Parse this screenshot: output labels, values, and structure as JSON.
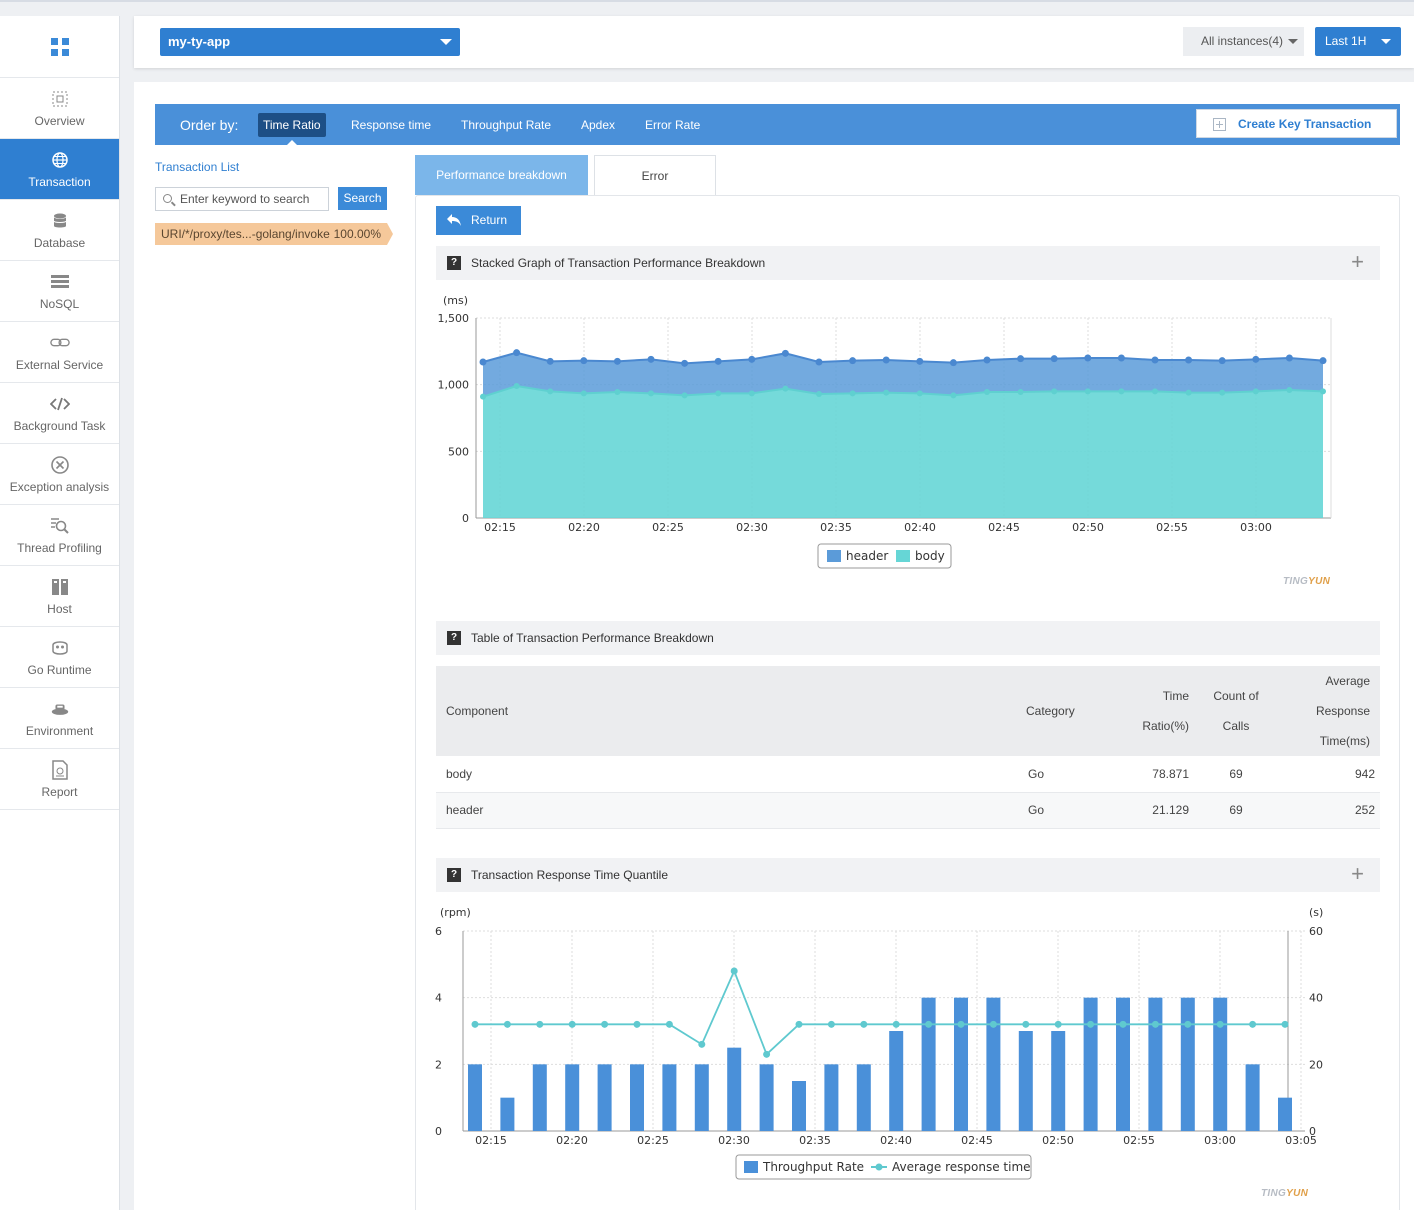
{
  "sidebar": {
    "items": [
      {
        "label": "Overview",
        "icon": "overview-icon"
      },
      {
        "label": "Transaction",
        "icon": "globe-icon",
        "active": true
      },
      {
        "label": "Database",
        "icon": "database-icon"
      },
      {
        "label": "NoSQL",
        "icon": "nosql-icon"
      },
      {
        "label": "External Service",
        "icon": "link-icon"
      },
      {
        "label": "Background Task",
        "icon": "code-icon"
      },
      {
        "label": "Exception analysis",
        "icon": "x-circle-icon"
      },
      {
        "label": "Thread Profiling",
        "icon": "profile-search-icon"
      },
      {
        "label": "Host",
        "icon": "host-icon"
      },
      {
        "label": "Go Runtime",
        "icon": "runtime-icon"
      },
      {
        "label": "Environment",
        "icon": "environment-icon"
      },
      {
        "label": "Report",
        "icon": "report-icon"
      }
    ]
  },
  "topbar": {
    "app": "my-ty-app",
    "instances": "All instances(4)",
    "time_range": "Last 1H"
  },
  "orderbar": {
    "label": "Order by:",
    "options": [
      "Time Ratio",
      "Response time",
      "Throughput Rate",
      "Apdex",
      "Error Rate"
    ],
    "create_label": "Create Key Transaction"
  },
  "transaction_list": {
    "title": "Transaction List",
    "search_placeholder": "Enter keyword to search",
    "search_button": "Search",
    "items": [
      {
        "name": "URI/*/proxy/tes...-golang/invoke",
        "pct": "100.00%"
      }
    ]
  },
  "tabs": [
    "Performance breakdown",
    "Error"
  ],
  "return_label": "Return",
  "sections": {
    "stacked_title": "Stacked Graph of Transaction Performance Breakdown",
    "table_title": "Table of Transaction Performance Breakdown",
    "quantile_title": "Transaction Response Time Quantile"
  },
  "table": {
    "headers": {
      "component": "Component",
      "category": "Category",
      "time_ratio_1": "Time",
      "time_ratio_2": "Ratio(%)",
      "count_1": "Count of",
      "count_2": "Calls",
      "avg_1": "Average",
      "avg_2": "Response",
      "avg_3": "Time(ms)"
    },
    "rows": [
      {
        "component": "body",
        "category": "Go",
        "ratio": "78.871",
        "calls": "69",
        "avg": "942"
      },
      {
        "component": "header",
        "category": "Go",
        "ratio": "21.129",
        "calls": "69",
        "avg": "252"
      }
    ]
  },
  "watermark": {
    "a": "TING",
    "b": "YUN"
  },
  "chart_data": [
    {
      "type": "area",
      "stacked": true,
      "unit_label": "(ms)",
      "ylim": [
        0,
        1500
      ],
      "yticks": [
        "0",
        "500",
        "1,000",
        "1,500"
      ],
      "xticks": [
        "02:15",
        "02:20",
        "02:25",
        "02:30",
        "02:35",
        "02:40",
        "02:45",
        "02:50",
        "02:55",
        "03:00"
      ],
      "legend": "bottom",
      "series": [
        {
          "name": "header",
          "color": "#5b9bd9",
          "values": [
            260,
            250,
            225,
            245,
            230,
            255,
            240,
            240,
            255,
            265,
            240,
            245,
            245,
            240,
            245,
            240,
            250,
            245,
            250,
            250,
            235,
            245,
            240,
            240,
            240,
            230
          ]
        },
        {
          "name": "body",
          "color": "#66d6d6",
          "values": [
            910,
            990,
            950,
            935,
            945,
            935,
            920,
            935,
            935,
            970,
            930,
            935,
            940,
            935,
            920,
            945,
            945,
            950,
            950,
            950,
            950,
            940,
            940,
            950,
            960,
            950
          ]
        }
      ]
    },
    {
      "type": "bar",
      "dual_axis": true,
      "left_unit": "(rpm)",
      "right_unit": "(s)",
      "ylim_left": [
        0,
        6
      ],
      "ylim_right": [
        0,
        60
      ],
      "yticks_left": [
        "0",
        "2",
        "4",
        "6"
      ],
      "yticks_right": [
        "0",
        "20",
        "40",
        "60"
      ],
      "xticks": [
        "02:15",
        "02:20",
        "02:25",
        "02:30",
        "02:35",
        "02:40",
        "02:45",
        "02:50",
        "02:55",
        "03:00",
        "03:05"
      ],
      "legend": "bottom",
      "series": [
        {
          "name": "Throughput Rate",
          "color": "#4a90d9",
          "axis": "left",
          "values": [
            2,
            1,
            2,
            2,
            2,
            2,
            2,
            2,
            2.5,
            2,
            1.5,
            2,
            2,
            3,
            4,
            4,
            4,
            3,
            3,
            4,
            4,
            4,
            4,
            4,
            2,
            1
          ]
        },
        {
          "name": "Average response time",
          "color": "#5fc9cf",
          "axis": "right",
          "type": "line",
          "values": [
            32,
            32,
            32,
            32,
            32,
            32,
            32,
            26,
            48,
            23,
            32,
            32,
            32,
            32,
            32,
            32,
            32,
            32,
            32,
            32,
            32,
            32,
            32,
            32,
            32,
            32
          ]
        }
      ]
    }
  ]
}
